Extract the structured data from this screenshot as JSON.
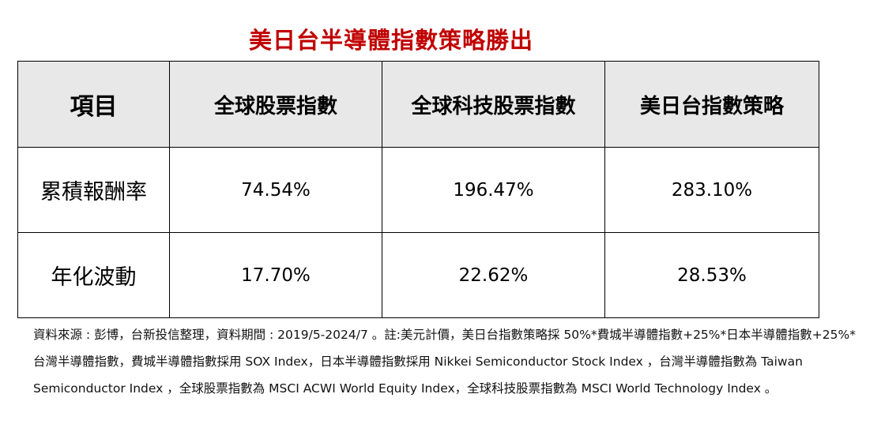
{
  "title": "美日台半導體指數策略勝出",
  "table": {
    "headers": [
      "項目",
      "全球股票指數",
      "全球科技股票指數",
      "美日台指數策略"
    ],
    "rows": [
      {
        "label": "累積報酬率",
        "values": [
          "74.54%",
          "196.47%",
          "283.10%"
        ]
      },
      {
        "label": "年化波動",
        "values": [
          "17.70%",
          "22.62%",
          "28.53%"
        ]
      }
    ]
  },
  "note": "資料來源 : 彭博，台新投信整理，資料期間 : 2019/5-2024/7 。註:美元計價，美日台指數策略採 50%*費城半導體指數+25%*日本半導體指數+25%*台灣半導體指數，費城半導體指數採用 SOX Index，日本半導體指數採用 Nikkei Semiconductor Stock Index ，台灣半導體指數為 Taiwan Semiconductor Index ，全球股票指數為 MSCI ACWI World Equity Index，全球科技股票指數為 MSCI World Technology Index 。"
}
